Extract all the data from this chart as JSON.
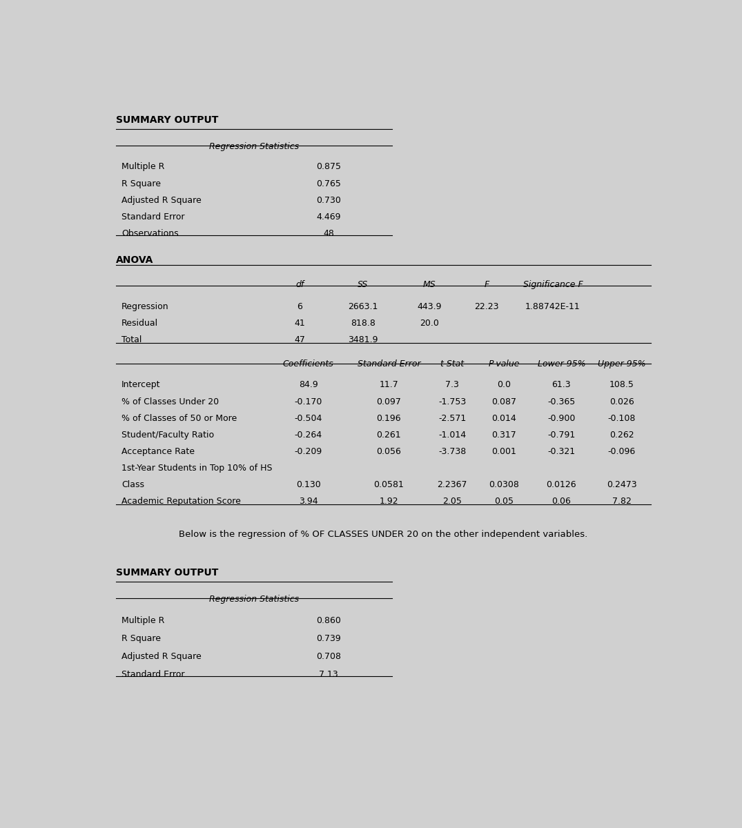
{
  "bg_color": "#d0d0d0",
  "content_bg": "#e0e0e0",
  "title1": "SUMMARY OUTPUT",
  "reg_stats_header": "Regression Statistics",
  "reg_stats_rows": [
    [
      "Multiple R",
      "0.875"
    ],
    [
      "R Square",
      "0.765"
    ],
    [
      "Adjusted R Square",
      "0.730"
    ],
    [
      "Standard Error",
      "4.469"
    ],
    [
      "Observations",
      "48"
    ]
  ],
  "anova_title": "ANOVA",
  "anova_header": [
    "df",
    "SS",
    "MS",
    "F",
    "Significance F"
  ],
  "anova_rows": [
    [
      "Regression",
      "6",
      "2663.1",
      "443.9",
      "22.23",
      "1.88742E-11"
    ],
    [
      "Residual",
      "41",
      "818.8",
      "20.0",
      "",
      ""
    ],
    [
      "Total",
      "47",
      "3481.9",
      "",
      "",
      ""
    ]
  ],
  "coeff_header": [
    "Coefficients",
    "Standard Error",
    "t Stat",
    "P-value",
    "Lower 95%",
    "Upper 95%"
  ],
  "coeff_rows": [
    [
      "Intercept",
      "84.9",
      "11.7",
      "7.3",
      "0.0",
      "61.3",
      "108.5"
    ],
    [
      "% of Classes Under 20",
      "-0.170",
      "0.097",
      "-1.753",
      "0.087",
      "-0.365",
      "0.026"
    ],
    [
      "% of Classes of 50 or More",
      "-0.504",
      "0.196",
      "-2.571",
      "0.014",
      "-0.900",
      "-0.108"
    ],
    [
      "Student/Faculty Ratio",
      "-0.264",
      "0.261",
      "-1.014",
      "0.317",
      "-0.791",
      "0.262"
    ],
    [
      "Acceptance Rate",
      "-0.209",
      "0.056",
      "-3.738",
      "0.001",
      "-0.321",
      "-0.096"
    ],
    [
      "1st-Year Students in Top 10% of HS",
      "",
      "",
      "",
      "",
      "",
      ""
    ],
    [
      "Class",
      "0.130",
      "0.0581",
      "2.2367",
      "0.0308",
      "0.0126",
      "0.2473"
    ],
    [
      "Academic Reputation Score",
      "3.94",
      "1.92",
      "2.05",
      "0.05",
      "0.06",
      "7.82"
    ]
  ],
  "note": "Below is the regression of % OF CLASSES UNDER 20 on the other independent variables.",
  "title2": "SUMMARY OUTPUT",
  "reg_stats2_header": "Regression Statistics",
  "reg_stats2_rows": [
    [
      "Multiple R",
      "0.860"
    ],
    [
      "R Square",
      "0.739"
    ],
    [
      "Adjusted R Square",
      "0.708"
    ],
    [
      "Standard Error",
      "7.13"
    ]
  ]
}
